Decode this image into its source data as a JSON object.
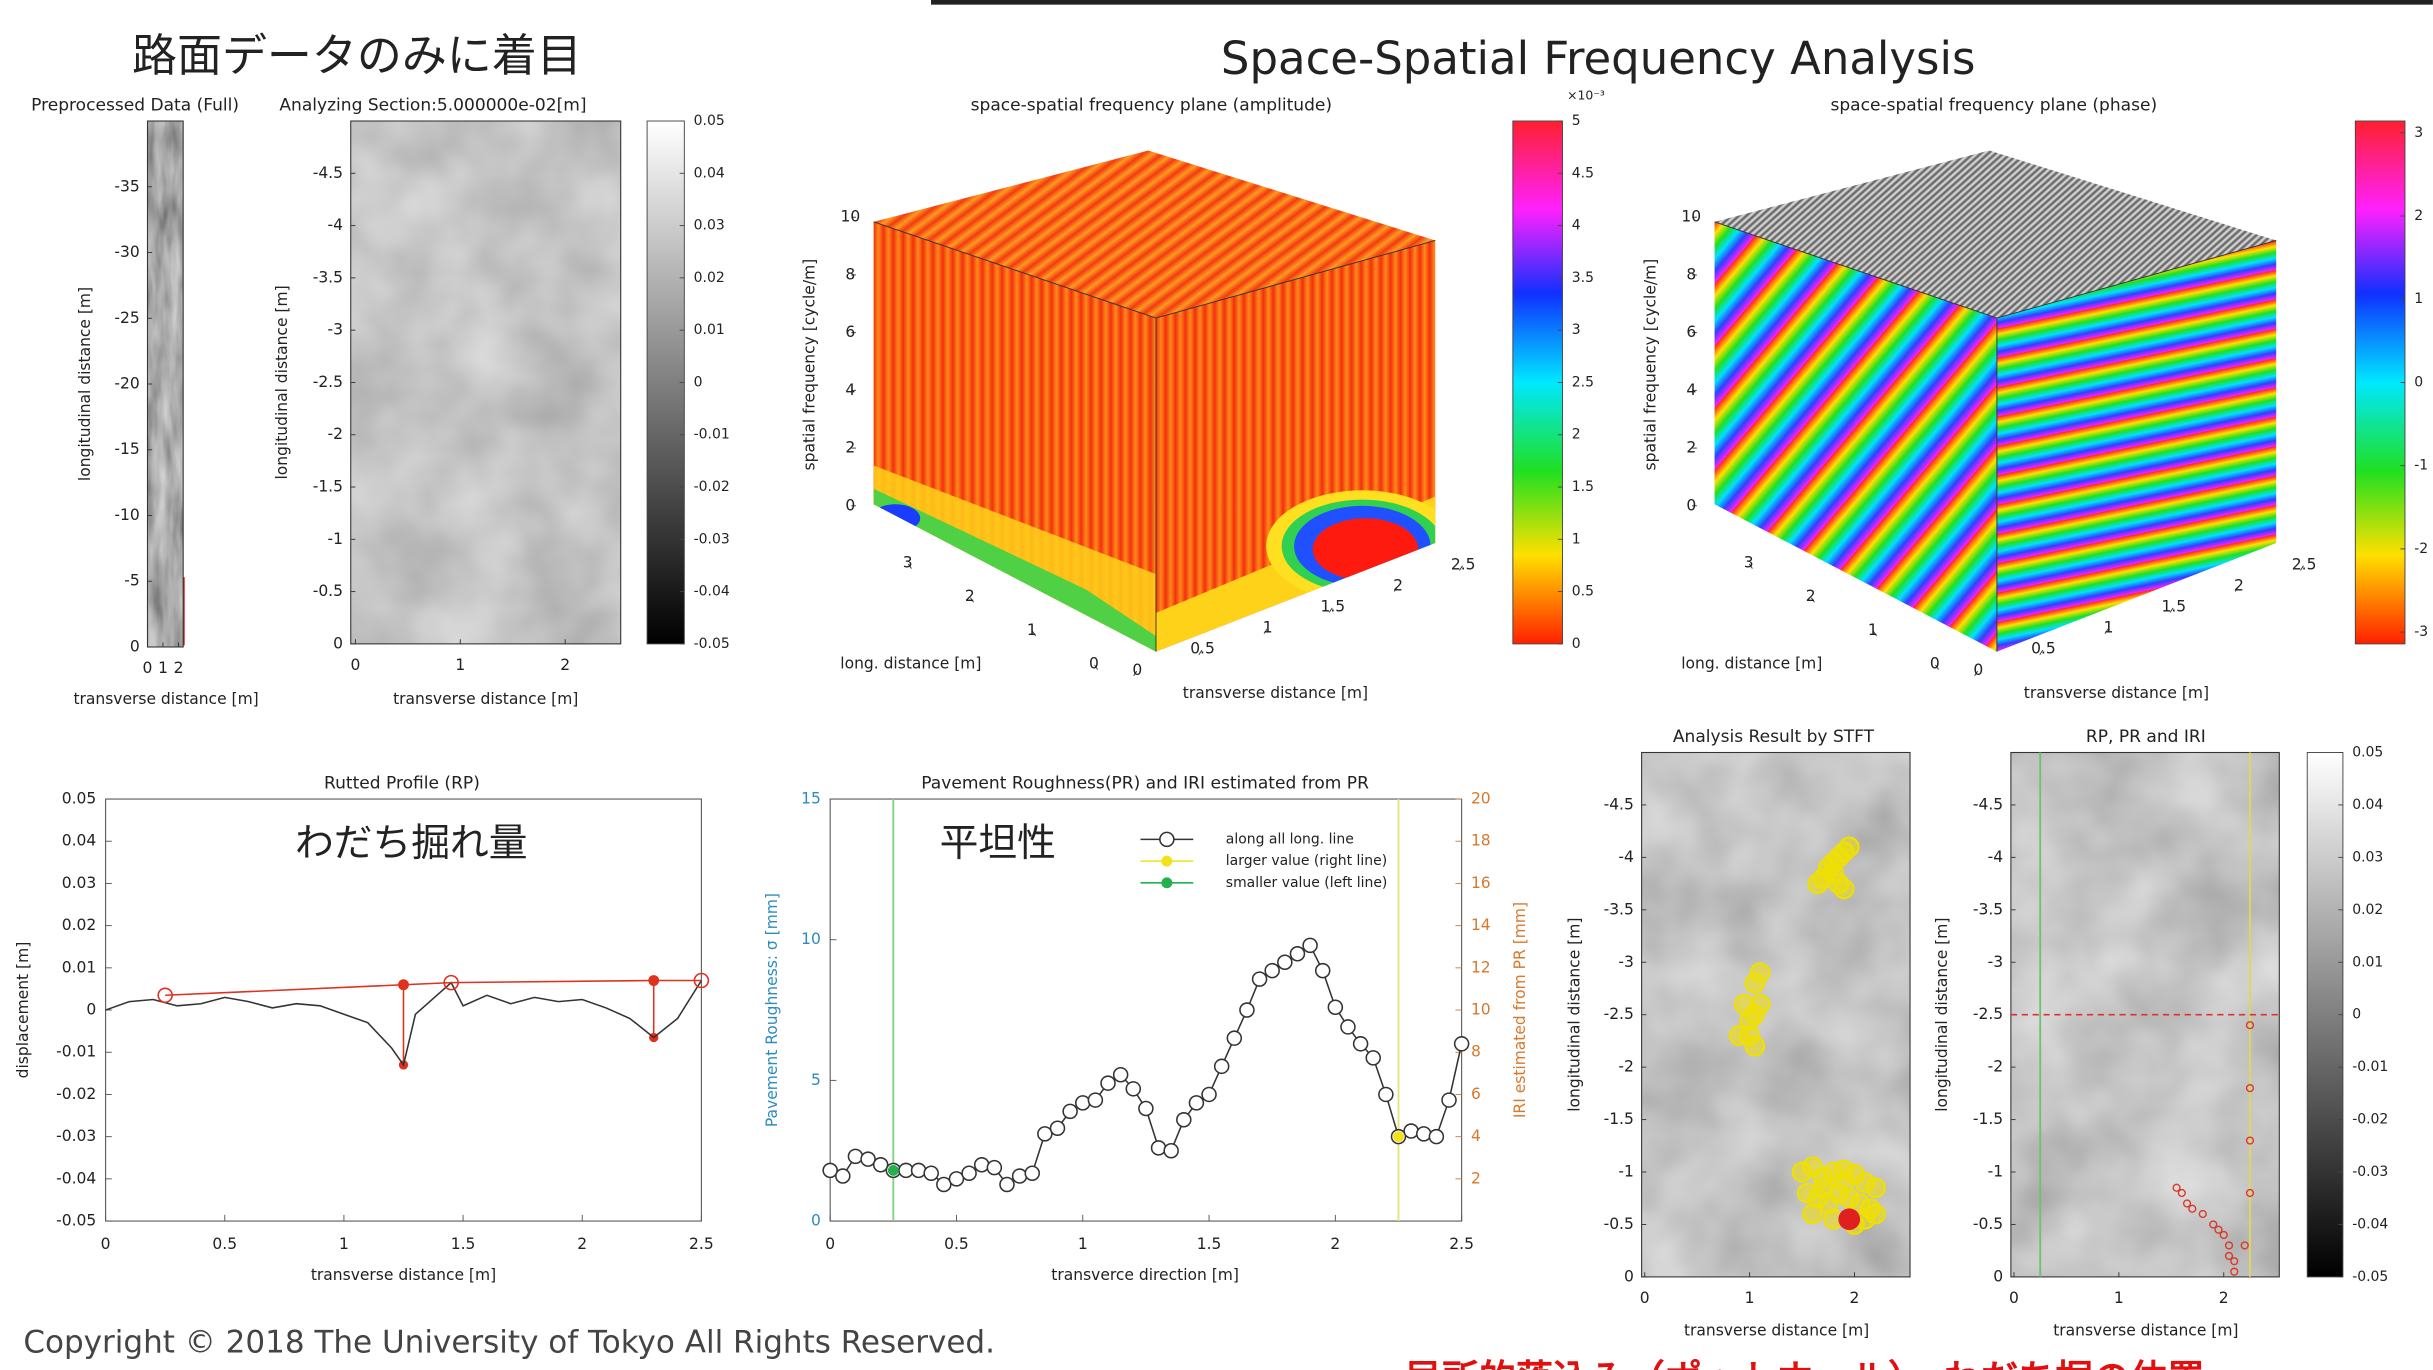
{
  "header": {
    "title_ja": "路面データのみに着目",
    "title": "Space-Spatial Frequency Analysis"
  },
  "footer": {
    "copyright": "Copyright © 2018 The University of Tokyo All Rights Reserved.",
    "caption_ja": "局所的落込み（ポットホール）　わだち掘の位置"
  },
  "chart_data": [
    {
      "type": "image",
      "title": "Preprocessed Data (Full)",
      "xlabel": "transverse distance [m]",
      "ylabel": "longitudinal distance [m]",
      "xlim": [
        0,
        2.5
      ],
      "xticks": [
        0,
        1,
        2
      ],
      "ylim": [
        0,
        -40
      ],
      "yticks": [
        -35,
        -30,
        -25,
        -20,
        -15,
        -10,
        -5,
        0
      ]
    },
    {
      "type": "image",
      "title": "Analyzing Section:5.000000e-02[m]",
      "xlabel": "transverse distance [m]",
      "ylabel": "longitudinal distance [m]",
      "xlim": [
        0,
        2.5
      ],
      "xticks": [
        0,
        1,
        2
      ],
      "ylim": [
        0,
        -5
      ],
      "yticks": [
        -4.5,
        -4,
        -3.5,
        -3,
        -2.5,
        -2,
        -1.5,
        -1,
        -0.5,
        0
      ],
      "colorbar": {
        "colormap": "gray",
        "lim": [
          -0.05,
          0.05
        ],
        "ticks": [
          0.05,
          0.04,
          0.03,
          0.02,
          0.01,
          0,
          -0.01,
          -0.02,
          -0.03,
          -0.04,
          -0.05
        ]
      }
    },
    {
      "type": "surface3d",
      "title": "space-spatial frequency plane (amplitude)",
      "zlabel": "spatial frequency [cycle/m]",
      "ylabel": "long. distance [m]",
      "xlabel": "transverse distance [m]",
      "zlim": [
        0,
        10
      ],
      "zticks": [
        0,
        2,
        4,
        6,
        8,
        10
      ],
      "ylim": [
        0,
        3.5
      ],
      "yticks": [
        3,
        2,
        1,
        0
      ],
      "xlim": [
        0,
        2.5
      ],
      "xticks": [
        0,
        0.5,
        1,
        1.5,
        2,
        2.5
      ],
      "colorbar": {
        "colormap": "hsv",
        "exponent": "×10⁻³",
        "lim": [
          0,
          5
        ],
        "ticks": [
          5,
          4.5,
          4,
          3.5,
          3,
          2.5,
          2,
          1.5,
          1,
          0.5,
          0
        ]
      }
    },
    {
      "type": "surface3d",
      "title": "space-spatial frequency plane (phase)",
      "zlabel": "spatial frequency [cycle/m]",
      "ylabel": "long. distance [m]",
      "xlabel": "transverse distance [m]",
      "zlim": [
        0,
        10
      ],
      "zticks": [
        0,
        2,
        4,
        6,
        8,
        10
      ],
      "ylim": [
        0,
        3.5
      ],
      "yticks": [
        3,
        2,
        1,
        0
      ],
      "xlim": [
        0,
        2.5
      ],
      "xticks": [
        0,
        0.5,
        1,
        1.5,
        2,
        2.5
      ],
      "colorbar": {
        "colormap": "hsv",
        "lim": [
          -3.14159,
          3.14159
        ],
        "ticks": [
          3,
          2,
          1,
          0,
          -1,
          -2,
          -3
        ]
      }
    },
    {
      "type": "line",
      "title": "Rutted Profile (RP)",
      "annotation": "わだち掘れ量",
      "xlabel": "transverse distance [m]",
      "ylabel": "displacement [m]",
      "xlim": [
        0,
        2.5
      ],
      "xticks": [
        0,
        0.5,
        1,
        1.5,
        2,
        2.5
      ],
      "ylim": [
        -0.05,
        0.05
      ],
      "yticks": [
        0.05,
        0.04,
        0.03,
        0.02,
        0.01,
        0,
        -0.01,
        -0.02,
        -0.03,
        -0.04,
        -0.05
      ],
      "series": [
        {
          "color": "#333333",
          "x": [
            0,
            0.1,
            0.2,
            0.3,
            0.4,
            0.5,
            0.6,
            0.7,
            0.8,
            0.9,
            1.0,
            1.1,
            1.2,
            1.25,
            1.3,
            1.4,
            1.45,
            1.5,
            1.6,
            1.7,
            1.8,
            1.9,
            2.0,
            2.1,
            2.2,
            2.3,
            2.4,
            2.5
          ],
          "values": [
            0,
            0.002,
            0.0025,
            0.001,
            0.0015,
            0.003,
            0.002,
            0.0005,
            0.0015,
            0.001,
            -0.001,
            -0.003,
            -0.009,
            -0.013,
            -0.001,
            0.004,
            0.0065,
            0.001,
            0.0035,
            0.0015,
            0.003,
            0.002,
            0.0025,
            0.0005,
            -0.002,
            -0.0065,
            -0.002,
            0.007
          ]
        },
        {
          "color": "#e0301e",
          "x": [
            0.25,
            1.25,
            1.45,
            2.3,
            2.5
          ],
          "values": [
            0.0035,
            0.006,
            0.0065,
            0.007,
            0.007
          ],
          "markers": [
            "circle-open",
            "dot",
            "circle-open",
            "dot",
            "circle-open"
          ]
        }
      ],
      "ruts": {
        "color": "#e0301e",
        "x": [
          1.25,
          2.3
        ],
        "top": [
          0.006,
          0.007
        ],
        "bottom": [
          -0.013,
          -0.0065
        ]
      }
    },
    {
      "type": "line",
      "title": "Pavement Roughness(PR) and IRI estimated from PR",
      "annotation": "平坦性",
      "xlabel": "transverce direction [m]",
      "ylabel": "Pavement Roughness: σ [mm]",
      "y2label": "IRI estimated from PR [mm]",
      "ycolor": "#2e8bc0",
      "y2color": "#d9782d",
      "xlim": [
        0,
        2.5
      ],
      "xticks": [
        0,
        0.5,
        1,
        1.5,
        2,
        2.5
      ],
      "ylim": [
        0,
        15
      ],
      "yticks": [
        0,
        5,
        10,
        15
      ],
      "y2lim": [
        0,
        20
      ],
      "y2ticks": [
        2,
        4,
        6,
        8,
        10,
        12,
        14,
        16,
        18,
        20
      ],
      "legend": "upper right",
      "series": [
        {
          "name": "along all long. line",
          "color": "#333333",
          "marker": "circle-open",
          "x": [
            0,
            0.05,
            0.1,
            0.15,
            0.2,
            0.25,
            0.3,
            0.35,
            0.4,
            0.45,
            0.5,
            0.55,
            0.6,
            0.65,
            0.7,
            0.75,
            0.8,
            0.85,
            0.9,
            0.95,
            1.0,
            1.05,
            1.1,
            1.15,
            1.2,
            1.25,
            1.3,
            1.35,
            1.4,
            1.45,
            1.5,
            1.55,
            1.6,
            1.65,
            1.7,
            1.75,
            1.8,
            1.85,
            1.9,
            1.95,
            2.0,
            2.05,
            2.1,
            2.15,
            2.2,
            2.25,
            2.3,
            2.35,
            2.4,
            2.45,
            2.5
          ],
          "values": [
            1.8,
            1.6,
            2.3,
            2.2,
            2.0,
            1.8,
            1.8,
            1.8,
            1.7,
            1.3,
            1.5,
            1.7,
            2.0,
            1.9,
            1.3,
            1.6,
            1.7,
            3.1,
            3.3,
            3.9,
            4.2,
            4.3,
            4.9,
            5.2,
            4.7,
            4.0,
            2.6,
            2.5,
            3.6,
            4.2,
            4.5,
            5.5,
            6.5,
            7.5,
            8.6,
            8.9,
            9.2,
            9.5,
            9.8,
            8.9,
            7.6,
            6.9,
            6.3,
            5.8,
            4.5,
            3.0,
            3.2,
            3.1,
            3.0,
            4.3,
            6.3
          ]
        },
        {
          "name": "larger value (right line)",
          "color": "#f2e21a",
          "marker": "dot",
          "x": [
            2.25
          ],
          "values": [
            3.0
          ]
        },
        {
          "name": "smaller value (left line)",
          "color": "#22b14c",
          "marker": "dot",
          "x": [
            0.25
          ],
          "values": [
            1.8
          ]
        }
      ],
      "vlines": [
        {
          "x": 0.25,
          "color": "#7fd37f"
        },
        {
          "x": 2.25,
          "color": "#e8e27a"
        }
      ]
    },
    {
      "type": "image",
      "title": "Analysis Result by STFT",
      "xlabel": "transverse distance [m]",
      "ylabel": "longitudinal distance [m]",
      "xlim": [
        0,
        2.5
      ],
      "xticks": [
        0,
        1,
        2
      ],
      "ylim": [
        0,
        -5
      ],
      "yticks": [
        -4.5,
        -4,
        -3.5,
        -3,
        -2.5,
        -2,
        -1.5,
        -1,
        -0.5,
        0
      ],
      "points": {
        "color": "#f0e000",
        "x": [
          1.65,
          1.7,
          1.75,
          1.8,
          1.85,
          1.9,
          1.95,
          1.9,
          1.85,
          1.8,
          1.0,
          1.05,
          1.1,
          1.05,
          1.0,
          0.95,
          1.1,
          1.05,
          0.9,
          1.5,
          1.6,
          1.7,
          1.8,
          1.9,
          2.0,
          2.1,
          2.2,
          1.55,
          1.65,
          1.75,
          1.85,
          1.95,
          2.05,
          2.15,
          1.6,
          1.8,
          2.0,
          2.2,
          1.7,
          1.9,
          2.1
        ],
        "y": [
          -3.75,
          -3.8,
          -3.9,
          -3.85,
          -4.0,
          -4.05,
          -4.1,
          -3.7,
          -3.75,
          -3.95,
          -2.3,
          -2.5,
          -2.6,
          -2.8,
          -2.45,
          -2.6,
          -2.9,
          -2.2,
          -2.3,
          -1.0,
          -1.05,
          -0.95,
          -1.0,
          -1.02,
          -0.98,
          -0.9,
          -0.85,
          -0.8,
          -0.75,
          -0.7,
          -0.8,
          -0.75,
          -0.7,
          -0.65,
          -0.6,
          -0.55,
          -0.5,
          -0.6,
          -0.85,
          -0.9,
          -0.55
        ]
      },
      "highlight": {
        "color": "#e02020",
        "x": 1.95,
        "y": -0.55
      }
    },
    {
      "type": "image",
      "title": "RP, PR and IRI",
      "xlabel": "transverse distance [m]",
      "ylabel": "longitudinal distance [m]",
      "xlim": [
        0,
        2.5
      ],
      "xticks": [
        0,
        1,
        2
      ],
      "ylim": [
        0,
        -5
      ],
      "yticks": [
        -4.5,
        -4,
        -3.5,
        -3,
        -2.5,
        -2,
        -1.5,
        -1,
        -0.5,
        0
      ],
      "vlines": [
        {
          "x": 0.25,
          "color": "#6cc46c"
        },
        {
          "x": 2.25,
          "color": "#e0d85a"
        }
      ],
      "hlines": [
        {
          "y": -2.5,
          "color": "#e03030"
        }
      ],
      "points": {
        "color": "#d83a2a",
        "x": [
          1.55,
          1.6,
          1.65,
          1.7,
          1.8,
          1.9,
          1.95,
          2.0,
          2.05,
          2.05,
          2.1,
          2.1,
          2.2,
          2.25,
          2.25,
          2.25,
          2.25
        ],
        "y": [
          -0.85,
          -0.8,
          -0.7,
          -0.65,
          -0.6,
          -0.5,
          -0.45,
          -0.4,
          -0.3,
          -0.2,
          -0.15,
          -0.05,
          -0.3,
          -0.8,
          -1.3,
          -1.8,
          -2.4
        ]
      },
      "colorbar": {
        "colormap": "gray",
        "lim": [
          -0.05,
          0.05
        ],
        "ticks": [
          0.05,
          0.04,
          0.03,
          0.02,
          0.01,
          0,
          -0.01,
          -0.02,
          -0.03,
          -0.04,
          -0.05
        ]
      }
    }
  ]
}
